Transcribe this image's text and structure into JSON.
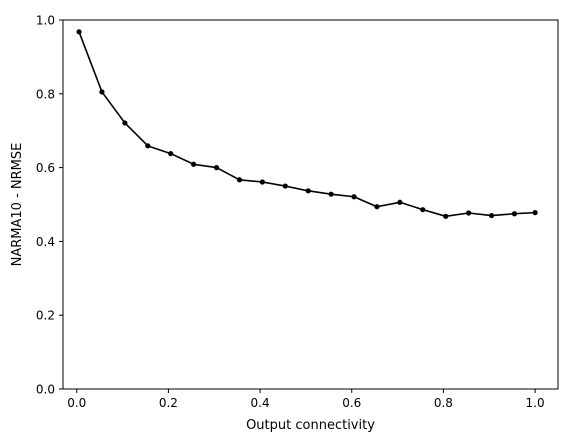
{
  "chart_data": {
    "type": "line",
    "title": "",
    "xlabel": "Output connectivity",
    "ylabel": "NARMA10 - NRMSE",
    "xlim": [
      -0.03,
      1.05
    ],
    "ylim": [
      0.0,
      1.0
    ],
    "xticks": [
      0.0,
      0.2,
      0.4,
      0.6,
      0.8,
      1.0
    ],
    "xtick_labels": [
      "0.0",
      "0.2",
      "0.4",
      "0.6",
      "0.8",
      "1.0"
    ],
    "yticks": [
      0.0,
      0.2,
      0.4,
      0.6,
      0.8,
      1.0
    ],
    "ytick_labels": [
      "0.0",
      "0.2",
      "0.4",
      "0.6",
      "0.8",
      "1.0"
    ],
    "grid": false,
    "legend": "none",
    "series": [
      {
        "color": "#000000",
        "marker": "circle",
        "x": [
          0.005,
          0.055,
          0.105,
          0.155,
          0.205,
          0.255,
          0.305,
          0.355,
          0.405,
          0.455,
          0.505,
          0.555,
          0.605,
          0.655,
          0.705,
          0.755,
          0.805,
          0.855,
          0.905,
          0.955,
          1.0
        ],
        "y": [
          0.968,
          0.805,
          0.721,
          0.659,
          0.638,
          0.609,
          0.6,
          0.567,
          0.561,
          0.55,
          0.537,
          0.528,
          0.521,
          0.494,
          0.506,
          0.486,
          0.468,
          0.477,
          0.47,
          0.475,
          0.478
        ]
      }
    ]
  }
}
